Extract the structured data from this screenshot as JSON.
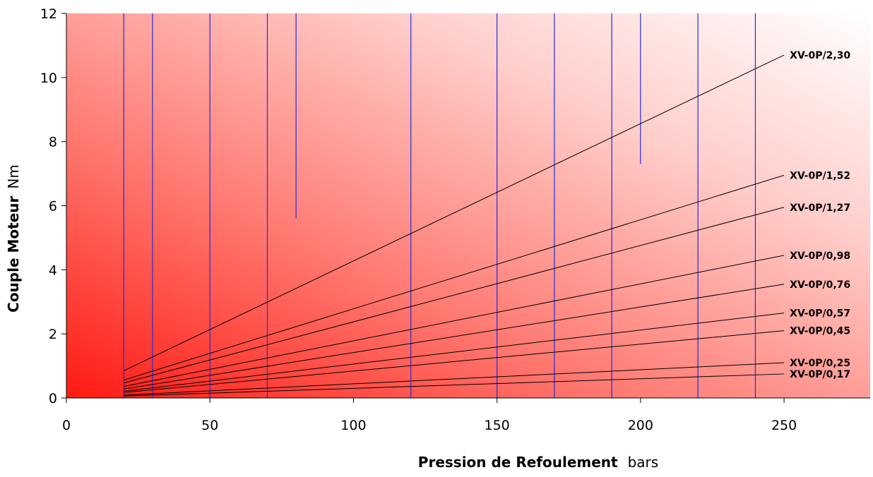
{
  "chart_data": {
    "type": "line",
    "xlabel": "Pression de Refoulement",
    "xlabel_unit": "bars",
    "ylabel": "Couple Moteur",
    "ylabel_unit": "Nm",
    "xlim": [
      0,
      280
    ],
    "ylim": [
      0,
      12
    ],
    "xticks": [
      0,
      50,
      100,
      150,
      200,
      250
    ],
    "yticks": [
      0,
      2,
      4,
      6,
      8,
      10,
      12
    ],
    "grid": "vertical",
    "background": "red-to-white gradient",
    "vertical_lines": [
      {
        "x": 20,
        "y_top": 12
      },
      {
        "x": 30,
        "y_top": 12
      },
      {
        "x": 50,
        "y_top": 12
      },
      {
        "x": 70,
        "y_top": 12
      },
      {
        "x": 80,
        "y_top": 12,
        "y_bottom": 5.6
      },
      {
        "x": 120,
        "y_top": 12
      },
      {
        "x": 150,
        "y_top": 12
      },
      {
        "x": 170,
        "y_top": 12
      },
      {
        "x": 190,
        "y_top": 12
      },
      {
        "x": 200,
        "y_top": 12,
        "y_bottom": 7.3
      },
      {
        "x": 220,
        "y_top": 12
      },
      {
        "x": 240,
        "y_top": 12
      }
    ],
    "series": [
      {
        "name": "XV-0P/2,30",
        "x": [
          20,
          250
        ],
        "y": [
          0.85,
          10.7
        ]
      },
      {
        "name": "XV-0P/1,52",
        "x": [
          20,
          250
        ],
        "y": [
          0.56,
          6.95
        ]
      },
      {
        "name": "XV-0P/1,27",
        "x": [
          20,
          250
        ],
        "y": [
          0.47,
          5.95
        ]
      },
      {
        "name": "XV-0P/0,98",
        "x": [
          20,
          250
        ],
        "y": [
          0.36,
          4.45
        ]
      },
      {
        "name": "XV-0P/0,76",
        "x": [
          20,
          250
        ],
        "y": [
          0.28,
          3.55
        ]
      },
      {
        "name": "XV-0P/0,57",
        "x": [
          20,
          250
        ],
        "y": [
          0.21,
          2.65
        ]
      },
      {
        "name": "XV-0P/0,45",
        "x": [
          20,
          250
        ],
        "y": [
          0.17,
          2.1
        ]
      },
      {
        "name": "XV-0P/0,25",
        "x": [
          20,
          250
        ],
        "y": [
          0.09,
          1.1
        ]
      },
      {
        "name": "XV-0P/0,17",
        "x": [
          20,
          250
        ],
        "y": [
          0.06,
          0.75
        ]
      }
    ]
  }
}
